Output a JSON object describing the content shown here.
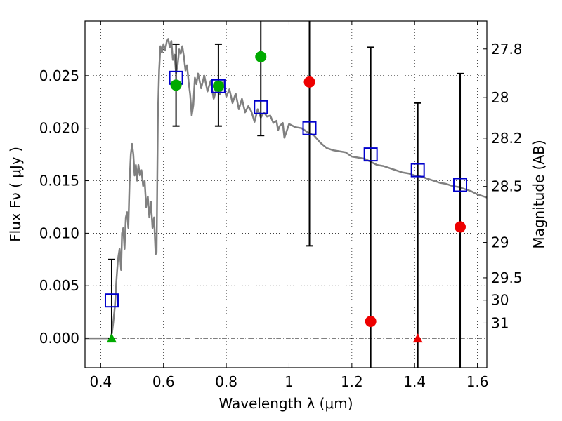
{
  "chart_data": {
    "type": "scatter",
    "title": "",
    "xlabel": "Wavelength  λ (μm)",
    "ylabel": "Flux  Fν  ( μJy )",
    "ylabel_right": "Magnitude (AB)",
    "xlim": [
      0.35,
      1.63
    ],
    "ylim": [
      -0.0028,
      0.0302
    ],
    "grid": true,
    "x_ticks": [
      0.4,
      0.6,
      0.8,
      1.0,
      1.2,
      1.4,
      1.6
    ],
    "x_tick_labels": [
      "0.4",
      "0.6",
      "0.8",
      "1",
      "1.2",
      "1.4",
      "1.6"
    ],
    "y_ticks": [
      0.0,
      0.005,
      0.01,
      0.015,
      0.02,
      0.025
    ],
    "y_tick_labels": [
      "0.000",
      "0.005",
      "0.010",
      "0.015",
      "0.020",
      "0.025"
    ],
    "right_ticks": [
      {
        "label": "27.8",
        "mag": 27.8
      },
      {
        "label": "28",
        "mag": 28.0
      },
      {
        "label": "28.2",
        "mag": 28.2
      },
      {
        "label": "28.5",
        "mag": 28.5
      },
      {
        "label": "29",
        "mag": 29.0
      },
      {
        "label": "29.5",
        "mag": 29.5
      },
      {
        "label": "30",
        "mag": 30.0
      },
      {
        "label": "31",
        "mag": 31.0
      }
    ],
    "colors": {
      "template": "#808080",
      "model": "#0000cc",
      "green": "#00aa00",
      "red": "#ee0000",
      "errorbar": "#000000"
    },
    "template_spectrum": [
      [
        0.35,
        0.0
      ],
      [
        0.4,
        0.0
      ],
      [
        0.43,
        0.0
      ],
      [
        0.436,
        0.0005
      ],
      [
        0.44,
        0.0015
      ],
      [
        0.445,
        0.003
      ],
      [
        0.45,
        0.0055
      ],
      [
        0.455,
        0.0075
      ],
      [
        0.46,
        0.0085
      ],
      [
        0.465,
        0.0065
      ],
      [
        0.468,
        0.01
      ],
      [
        0.472,
        0.0105
      ],
      [
        0.476,
        0.0085
      ],
      [
        0.48,
        0.0115
      ],
      [
        0.484,
        0.012
      ],
      [
        0.488,
        0.0105
      ],
      [
        0.492,
        0.015
      ],
      [
        0.496,
        0.0175
      ],
      [
        0.5,
        0.0185
      ],
      [
        0.504,
        0.0175
      ],
      [
        0.508,
        0.0155
      ],
      [
        0.512,
        0.0165
      ],
      [
        0.516,
        0.015
      ],
      [
        0.52,
        0.0165
      ],
      [
        0.525,
        0.0155
      ],
      [
        0.53,
        0.016
      ],
      [
        0.535,
        0.0145
      ],
      [
        0.54,
        0.015
      ],
      [
        0.545,
        0.0125
      ],
      [
        0.55,
        0.0135
      ],
      [
        0.555,
        0.0115
      ],
      [
        0.56,
        0.013
      ],
      [
        0.565,
        0.0105
      ],
      [
        0.57,
        0.0115
      ],
      [
        0.575,
        0.008
      ],
      [
        0.578,
        0.0082
      ],
      [
        0.582,
        0.021
      ],
      [
        0.586,
        0.0255
      ],
      [
        0.59,
        0.0278
      ],
      [
        0.595,
        0.0272
      ],
      [
        0.6,
        0.028
      ],
      [
        0.605,
        0.0274
      ],
      [
        0.61,
        0.0282
      ],
      [
        0.615,
        0.0285
      ],
      [
        0.62,
        0.0277
      ],
      [
        0.625,
        0.0283
      ],
      [
        0.63,
        0.0265
      ],
      [
        0.635,
        0.027
      ],
      [
        0.64,
        0.0252
      ],
      [
        0.645,
        0.026
      ],
      [
        0.65,
        0.0275
      ],
      [
        0.655,
        0.0271
      ],
      [
        0.66,
        0.0278
      ],
      [
        0.665,
        0.0268
      ],
      [
        0.67,
        0.0255
      ],
      [
        0.675,
        0.026
      ],
      [
        0.68,
        0.0244
      ],
      [
        0.685,
        0.0232
      ],
      [
        0.69,
        0.0212
      ],
      [
        0.695,
        0.0222
      ],
      [
        0.7,
        0.0248
      ],
      [
        0.705,
        0.0242
      ],
      [
        0.71,
        0.0252
      ],
      [
        0.72,
        0.0238
      ],
      [
        0.73,
        0.025
      ],
      [
        0.74,
        0.0235
      ],
      [
        0.75,
        0.0245
      ],
      [
        0.76,
        0.0228
      ],
      [
        0.77,
        0.0238
      ],
      [
        0.78,
        0.0232
      ],
      [
        0.79,
        0.0244
      ],
      [
        0.8,
        0.023
      ],
      [
        0.81,
        0.0237
      ],
      [
        0.82,
        0.0224
      ],
      [
        0.83,
        0.0233
      ],
      [
        0.84,
        0.0218
      ],
      [
        0.85,
        0.0228
      ],
      [
        0.86,
        0.0215
      ],
      [
        0.87,
        0.0221
      ],
      [
        0.88,
        0.0216
      ],
      [
        0.89,
        0.0206
      ],
      [
        0.9,
        0.0218
      ],
      [
        0.91,
        0.021
      ],
      [
        0.92,
        0.0215
      ],
      [
        0.93,
        0.0211
      ],
      [
        0.94,
        0.0212
      ],
      [
        0.95,
        0.0205
      ],
      [
        0.96,
        0.0207
      ],
      [
        0.965,
        0.0198
      ],
      [
        0.97,
        0.0202
      ],
      [
        0.98,
        0.0205
      ],
      [
        0.985,
        0.0191
      ],
      [
        0.99,
        0.0195
      ],
      [
        1.0,
        0.0204
      ],
      [
        1.02,
        0.0201
      ],
      [
        1.04,
        0.02
      ],
      [
        1.06,
        0.0196
      ],
      [
        1.08,
        0.0193
      ],
      [
        1.1,
        0.0186
      ],
      [
        1.12,
        0.0181
      ],
      [
        1.14,
        0.0179
      ],
      [
        1.16,
        0.0178
      ],
      [
        1.18,
        0.0177
      ],
      [
        1.2,
        0.0173
      ],
      [
        1.22,
        0.0172
      ],
      [
        1.24,
        0.0171
      ],
      [
        1.26,
        0.0168
      ],
      [
        1.28,
        0.0165
      ],
      [
        1.3,
        0.0164
      ],
      [
        1.32,
        0.0162
      ],
      [
        1.34,
        0.016
      ],
      [
        1.36,
        0.0158
      ],
      [
        1.38,
        0.0157
      ],
      [
        1.4,
        0.0155
      ],
      [
        1.42,
        0.0154
      ],
      [
        1.44,
        0.0152
      ],
      [
        1.46,
        0.015
      ],
      [
        1.48,
        0.0148
      ],
      [
        1.5,
        0.0147
      ],
      [
        1.52,
        0.0145
      ],
      [
        1.54,
        0.0144
      ],
      [
        1.56,
        0.0142
      ],
      [
        1.58,
        0.014
      ],
      [
        1.6,
        0.0137
      ],
      [
        1.63,
        0.0134
      ]
    ],
    "model_points": [
      {
        "x": 0.435,
        "y": 0.0036
      },
      {
        "x": 0.64,
        "y": 0.0248
      },
      {
        "x": 0.775,
        "y": 0.024
      },
      {
        "x": 0.91,
        "y": 0.022
      },
      {
        "x": 1.065,
        "y": 0.02
      },
      {
        "x": 1.26,
        "y": 0.0175
      },
      {
        "x": 1.41,
        "y": 0.016
      },
      {
        "x": 1.545,
        "y": 0.0146
      }
    ],
    "error_bars": [
      {
        "x": 0.435,
        "low": 0.0,
        "high": 0.0075
      },
      {
        "x": 0.64,
        "low": 0.0202,
        "high": 0.028
      },
      {
        "x": 0.775,
        "low": 0.0202,
        "high": 0.028
      },
      {
        "x": 0.91,
        "low": 0.0193,
        "high": 0.0302
      },
      {
        "x": 1.065,
        "low": 0.0088,
        "high": 0.0302
      },
      {
        "x": 1.26,
        "low": -0.0028,
        "high": 0.0277
      },
      {
        "x": 1.41,
        "low": -0.0028,
        "high": 0.0224
      },
      {
        "x": 1.545,
        "low": -0.0028,
        "high": 0.0252
      }
    ],
    "green_points": [
      {
        "x": 0.64,
        "y": 0.0241
      },
      {
        "x": 0.775,
        "y": 0.024
      },
      {
        "x": 0.91,
        "y": 0.0268
      }
    ],
    "red_points": [
      {
        "x": 1.065,
        "y": 0.0244
      },
      {
        "x": 1.26,
        "y": 0.0016
      },
      {
        "x": 1.545,
        "y": 0.0106
      }
    ],
    "upper_limits": [
      {
        "x": 0.435,
        "y": 0.0,
        "color": "green"
      },
      {
        "x": 1.41,
        "y": 0.0,
        "color": "red"
      }
    ]
  }
}
